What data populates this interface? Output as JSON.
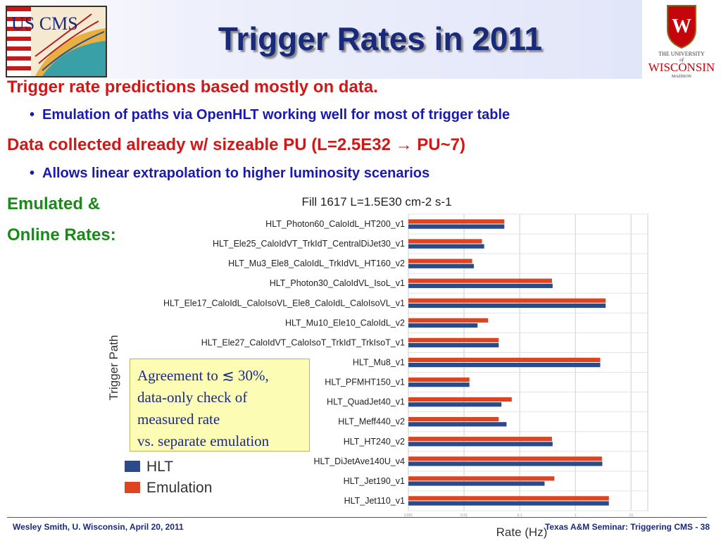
{
  "slide": {
    "title": "Trigger Rates in 2011",
    "line1": "Trigger rate predictions based mostly on data.",
    "line1_sub": "Emulation of paths via OpenHLT working well for most of trigger table",
    "line2": "Data collected already w/ sizeable PU (L=2.5E32 → PU~7)",
    "line2_sub": "Allows linear extrapolation to higher luminosity scenarios",
    "line3a": "Emulated  &",
    "line3b": "Online Rates:",
    "bullet_glyph": "•",
    "logo_left_text": "US CMS",
    "logo_right": {
      "top": "THE UNIVERSITY",
      "of": "of",
      "main": "WISCONSIN",
      "bottom": "MADISON",
      "crest_letter": "W"
    },
    "footer_left": "Wesley Smith, U. Wisconsin, April 20, 2011",
    "footer_right": "Texas A&M Seminar: Triggering CMS -  38"
  },
  "note": {
    "lines": [
      "Agreement to ≲ 30%,",
      "data-only check of",
      "measured rate",
      "vs. separate emulation"
    ]
  },
  "colors": {
    "hlt": "#2a4a8a",
    "emulation": "#dd4422",
    "title": "#1a2a7a",
    "red_text": "#d01818",
    "blue_text": "#1a1ab0",
    "green_text": "#1a8a1a",
    "wisconsin_red": "#c5050c"
  },
  "chart_data": {
    "type": "bar",
    "orientation": "horizontal",
    "title": "Fill 1617 L=1.5E30 cm-2 s-1",
    "xlabel": "Rate (Hz)",
    "ylabel": "Trigger Path",
    "xscale": "log",
    "xlim": [
      0.001,
      20
    ],
    "xticks": [
      0.001,
      0.01,
      0.1,
      1,
      10
    ],
    "xtick_labels": [
      "0.001",
      "0.01",
      "0.1",
      "1",
      "10"
    ],
    "grid": true,
    "legend_placement": "bottom-left",
    "categories": [
      "HLT_Photon60_CaloIdL_HT200_v1",
      "HLT_Ele25_CaloIdVT_TrkIdT_CentralDiJet30_v1",
      "HLT_Mu3_Ele8_CaloIdL_TrkIdVL_HT160_v2",
      "HLT_Photon30_CaloIdVL_IsoL_v1",
      "HLT_Ele17_CaloIdL_CaloIsoVL_Ele8_CaloIdL_CaloIsoVL_v1",
      "HLT_Mu10_Ele10_CaloIdL_v2",
      "HLT_Ele27_CaloIdVT_CaloIsoT_TrkIdT_TrkIsoT_v1",
      "HLT_Mu8_v1",
      "HLT_PFMHT150_v1",
      "HLT_QuadJet40_v1",
      "HLT_Meff440_v2",
      "HLT_HT240_v2",
      "HLT_DiJetAve140U_v4",
      "HLT_Jet190_v1",
      "HLT_Jet110_v1"
    ],
    "series": [
      {
        "name": "HLT",
        "values": [
          0.053,
          0.023,
          0.015,
          0.39,
          3.5,
          0.0175,
          0.042,
          2.8,
          0.0125,
          0.047,
          0.058,
          0.39,
          3.05,
          0.28,
          4.0
        ]
      },
      {
        "name": "Emulation",
        "values": [
          0.053,
          0.021,
          0.014,
          0.38,
          3.5,
          0.027,
          0.042,
          2.8,
          0.0125,
          0.072,
          0.042,
          0.38,
          3.0,
          0.42,
          4.0
        ]
      }
    ],
    "emulation_second_row_note": "",
    "legend": [
      "HLT",
      "Emulation"
    ]
  }
}
